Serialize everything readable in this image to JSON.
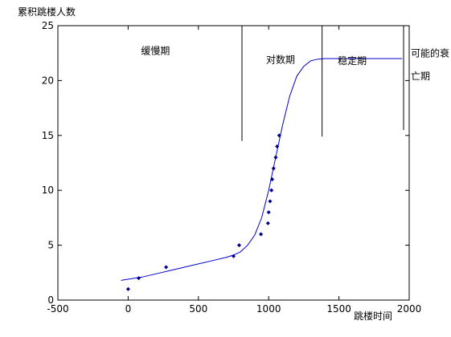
{
  "chart_data": {
    "type": "scatter",
    "title": "",
    "xlabel": "跳楼时间",
    "ylabel": "累积跳楼人数",
    "xlim": [
      -500,
      2000
    ],
    "ylim": [
      0,
      25
    ],
    "x_ticks": [
      -500,
      0,
      500,
      1000,
      1500,
      2000
    ],
    "y_ticks": [
      0,
      5,
      10,
      15,
      20,
      25
    ],
    "x_tick_labels": [
      "-500",
      "0",
      "500",
      "1000",
      "1500",
      "2000"
    ],
    "y_tick_labels": [
      "0",
      "5",
      "10",
      "15",
      "20",
      "25"
    ],
    "grid": false,
    "colors": {
      "points": "#00008b",
      "curve": "#0000cd",
      "axes": "#000000",
      "dividers": "#000000"
    },
    "series": [
      {
        "kind": "points",
        "x": [
          0,
          75,
          270,
          750,
          790,
          945,
          995,
          1000,
          1010,
          1020,
          1025,
          1035,
          1050,
          1060,
          1075
        ],
        "y": [
          1,
          2,
          3,
          4,
          5,
          6,
          7,
          8,
          9,
          10,
          11,
          12,
          13,
          14,
          15
        ]
      },
      {
        "kind": "line",
        "x": [
          -50,
          0,
          100,
          200,
          300,
          400,
          500,
          600,
          700,
          750,
          800,
          850,
          900,
          950,
          1000,
          1050,
          1100,
          1150,
          1200,
          1250,
          1300,
          1350,
          1400,
          1500,
          1600,
          1700,
          1800,
          1900,
          1950
        ],
        "y": [
          1.8,
          1.9,
          2.1,
          2.4,
          2.7,
          3.0,
          3.3,
          3.6,
          3.9,
          4.1,
          4.4,
          5.0,
          5.9,
          7.5,
          10.0,
          13.0,
          16.0,
          18.6,
          20.4,
          21.3,
          21.8,
          21.95,
          22.0,
          22.0,
          22.0,
          22.0,
          22.0,
          22.0,
          22.0
        ]
      }
    ],
    "dividers": [
      {
        "x": 810,
        "y_from": 14.5,
        "y_to": 25
      },
      {
        "x": 1380,
        "y_from": 14.9,
        "y_to": 25
      },
      {
        "x": 1960,
        "y_from": 15.5,
        "y_to": 25
      }
    ],
    "phase_labels": [
      {
        "text": "缓慢期",
        "x": 80,
        "y": 22.4
      },
      {
        "text": "对数期",
        "x": 970,
        "y": 21.6
      },
      {
        "text": "稳定期",
        "x": 1480,
        "y": 21.5
      },
      {
        "text": "可能的衰",
        "x": 2000,
        "y": 22.2
      },
      {
        "text": "亡期",
        "x": 2000,
        "y": 20.1
      }
    ]
  }
}
